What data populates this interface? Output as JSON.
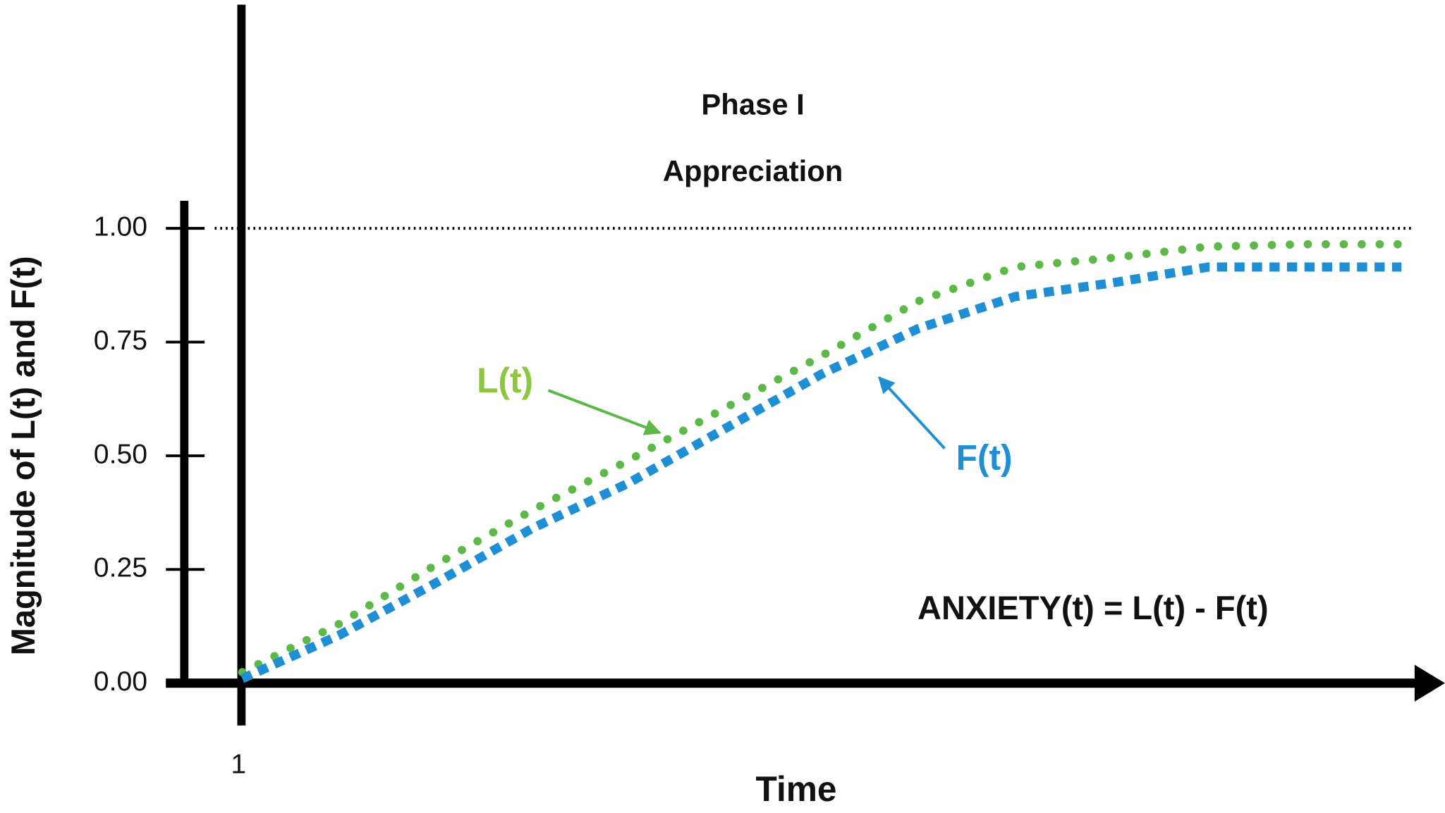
{
  "chart_data": {
    "type": "line",
    "annotations": [
      "Phase I",
      "Appreciation",
      "ANXIETY(t) = L(t) - F(t)"
    ],
    "x_label": "Time",
    "y_label": "Magnitude of  L(t) and  F(t)",
    "x": [
      1,
      2,
      3,
      4,
      5,
      6,
      7,
      8,
      9,
      10,
      11,
      12,
      13
    ],
    "series": [
      {
        "name": "L(t)",
        "color": "#5cb947",
        "style": "dotted",
        "values": [
          0.024,
          0.13,
          0.26,
          0.38,
          0.49,
          0.605,
          0.72,
          0.84,
          0.915,
          0.935,
          0.96,
          0.965,
          0.965
        ]
      },
      {
        "name": "F(t)",
        "color": "#1e8fd5",
        "style": "dashed",
        "values": [
          0.01,
          0.105,
          0.22,
          0.34,
          0.44,
          0.56,
          0.68,
          0.78,
          0.85,
          0.88,
          0.915,
          0.915,
          0.915
        ]
      }
    ],
    "xlim": [
      0.4,
      13.45
    ],
    "xticks": [
      1
    ],
    "ylim": [
      0,
      1
    ],
    "yticks": [
      {
        "value": 0,
        "label": "0.00"
      },
      {
        "value": 0.25,
        "label": "0.25"
      },
      {
        "value": 0.5,
        "label": "0.50"
      },
      {
        "value": 0.75,
        "label": "0.75"
      },
      {
        "value": 1,
        "label": "1.00"
      }
    ],
    "reference_line": 1
  }
}
